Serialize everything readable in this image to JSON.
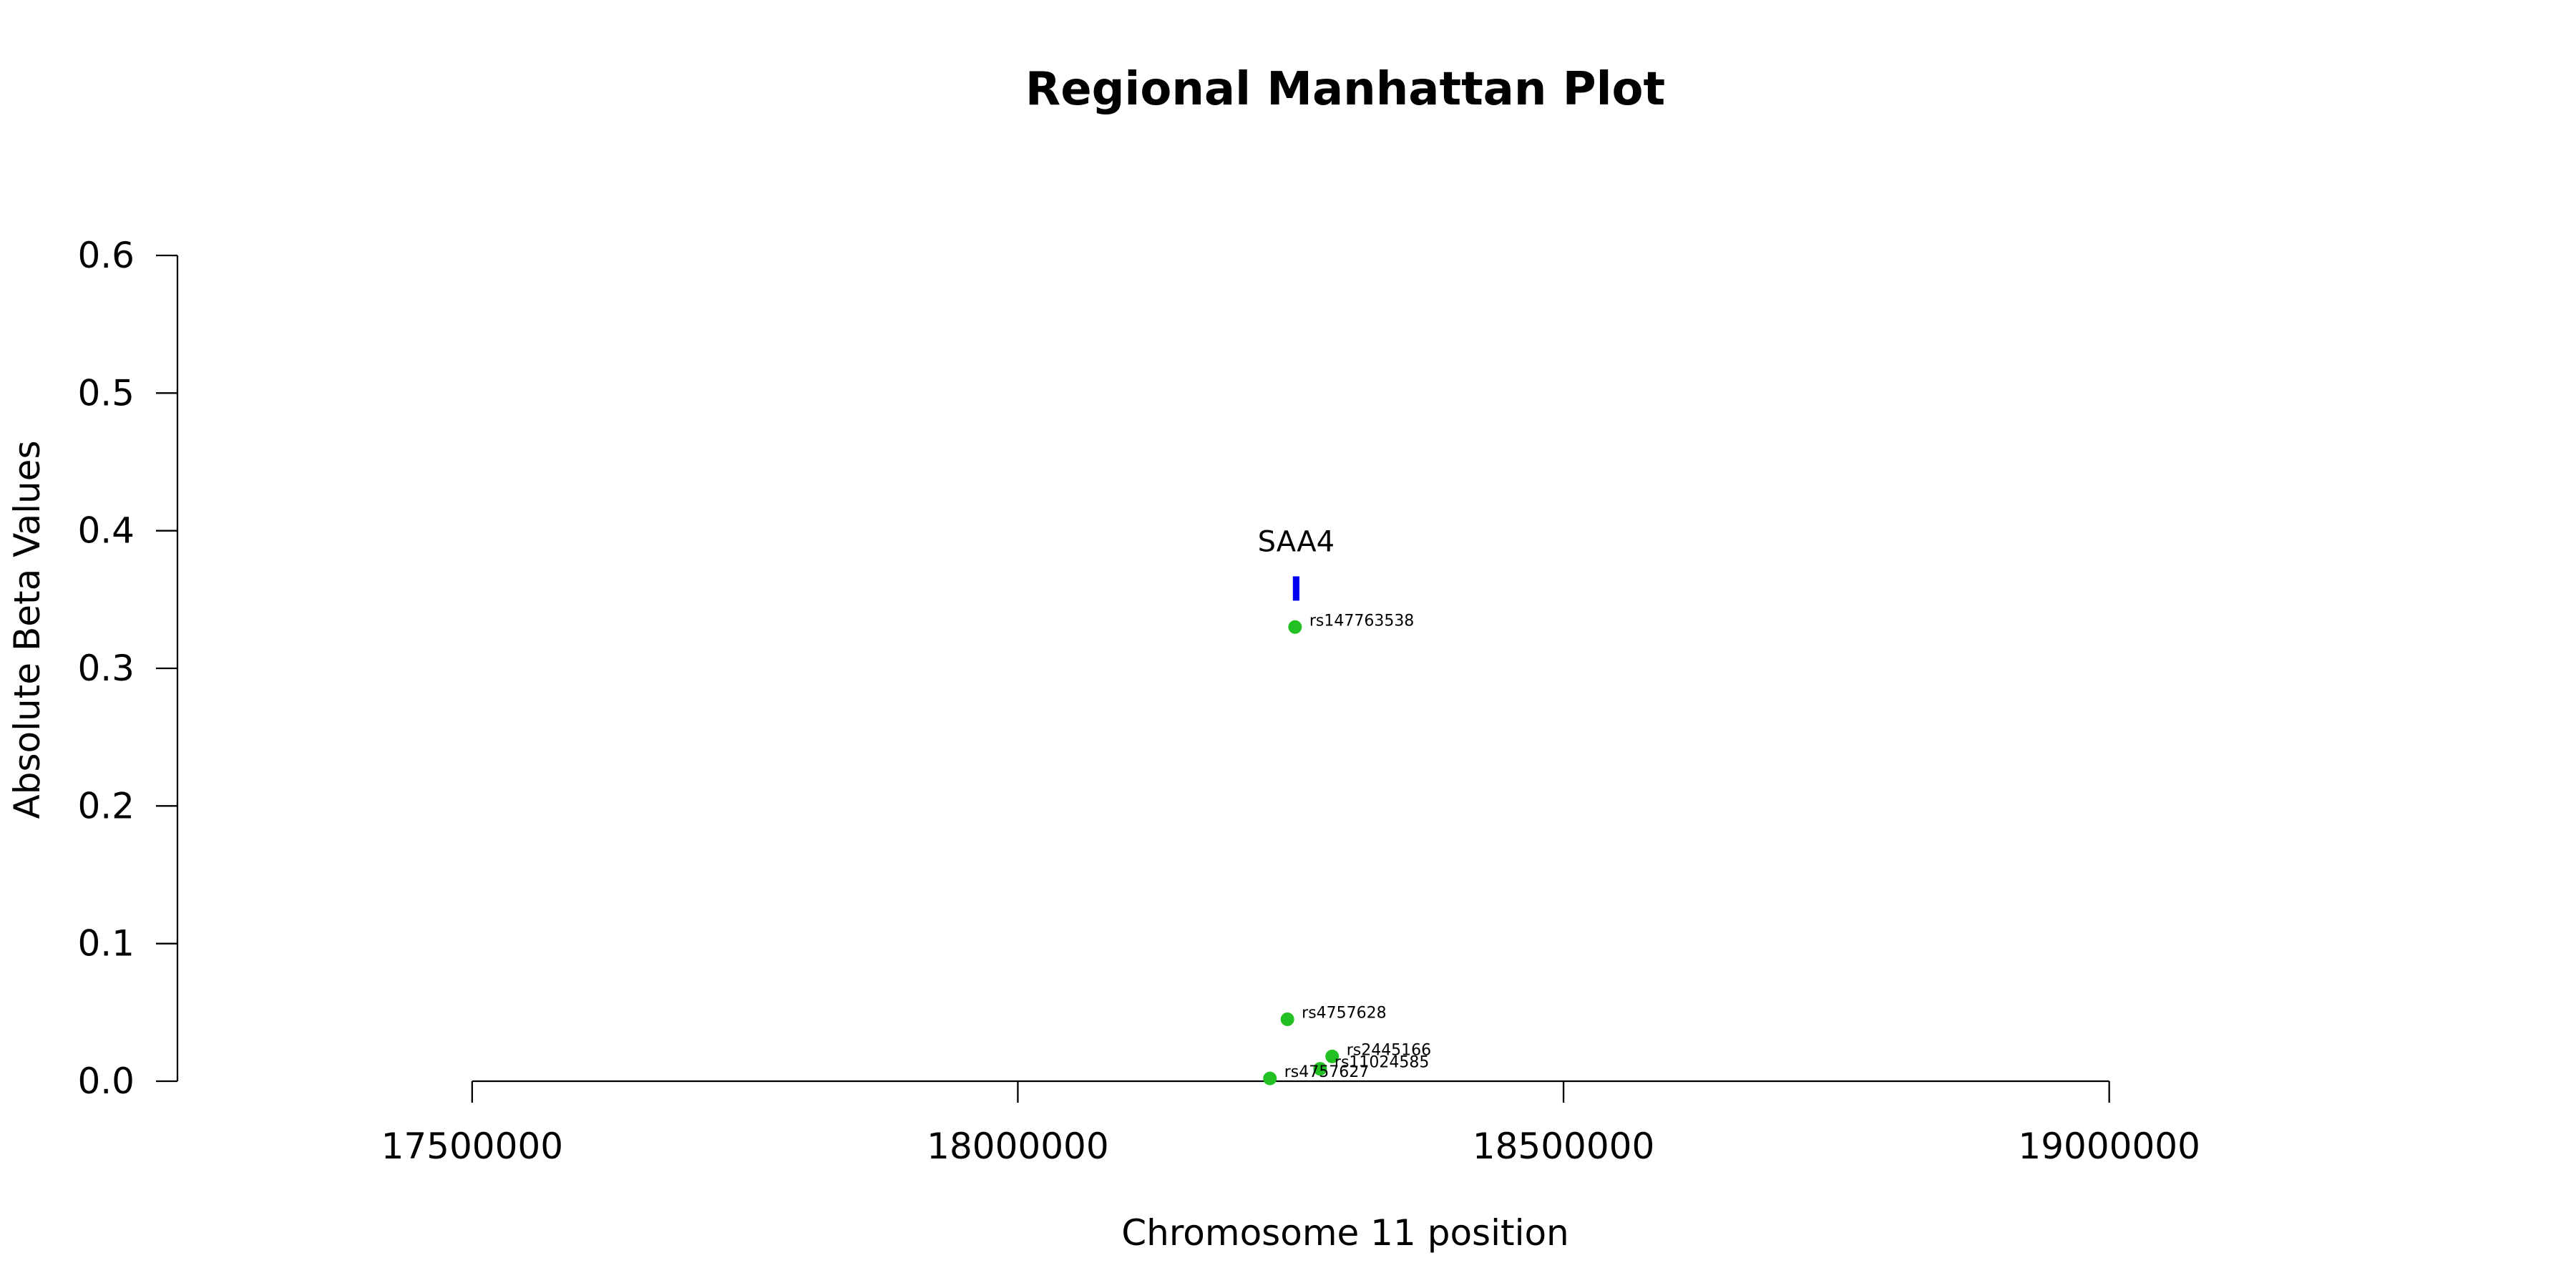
{
  "chart_data": {
    "type": "scatter",
    "title": "Regional Manhattan Plot",
    "xlabel": "Chromosome 11 position",
    "ylabel": "Absolute Beta Values",
    "xlim": [
      17230000,
      19370000
    ],
    "ylim": [
      0,
      0.6
    ],
    "x_ticks": [
      17500000,
      18000000,
      18500000,
      19000000
    ],
    "y_ticks": [
      0.0,
      0.1,
      0.2,
      0.3,
      0.4,
      0.5,
      0.6
    ],
    "x_tick_labels": [
      "17500000",
      "18000000",
      "18500000",
      "19000000"
    ],
    "y_tick_labels": [
      "0.0",
      "0.1",
      "0.2",
      "0.3",
      "0.4",
      "0.5",
      "0.6"
    ],
    "grid": false,
    "point_color": "#22c022",
    "points": [
      {
        "label": "rs147763538",
        "x": 18254000,
        "y": 0.33
      },
      {
        "label": "rs4757628",
        "x": 18247000,
        "y": 0.045
      },
      {
        "label": "rs2445166",
        "x": 18288000,
        "y": 0.018
      },
      {
        "label": "rs11024585",
        "x": 18277000,
        "y": 0.009
      },
      {
        "label": "rs4757627",
        "x": 18231000,
        "y": 0.002
      }
    ],
    "genes": [
      {
        "name": "SAA4",
        "start": 18252000,
        "end": 18258000,
        "y": 0.358,
        "color": "#0000ee"
      }
    ]
  }
}
